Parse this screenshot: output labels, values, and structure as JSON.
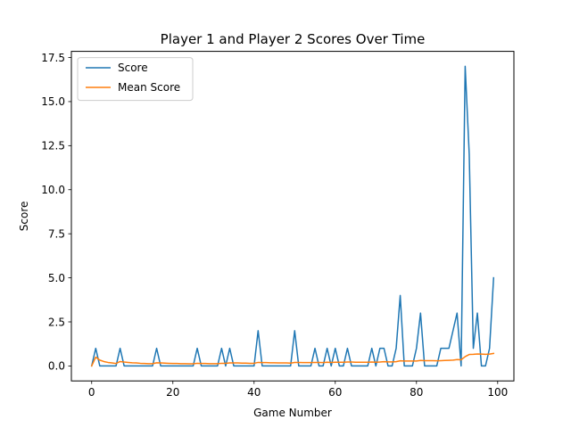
{
  "chart_data": {
    "type": "line",
    "title": "Player 1 and Player 2 Scores Over Time",
    "xlabel": "Game Number",
    "ylabel": "Score",
    "xlim": [
      -5,
      104
    ],
    "ylim": [
      -0.85,
      17.85
    ],
    "xticks": [
      0,
      20,
      40,
      60,
      80,
      100
    ],
    "xtick_labels": [
      "0",
      "20",
      "40",
      "60",
      "80",
      "100"
    ],
    "yticks": [
      0,
      2.5,
      5,
      7.5,
      10,
      12.5,
      15,
      17.5
    ],
    "ytick_labels": [
      "0.0",
      "2.5",
      "5.0",
      "7.5",
      "10.0",
      "12.5",
      "15.0",
      "17.5"
    ],
    "grid": false,
    "legend_position": "top-left",
    "series": [
      {
        "name": "Score",
        "color": "#1f77b4",
        "x": [
          0,
          1,
          2,
          3,
          4,
          5,
          6,
          7,
          8,
          9,
          10,
          11,
          12,
          13,
          14,
          15,
          16,
          17,
          18,
          19,
          20,
          21,
          22,
          23,
          24,
          25,
          26,
          27,
          28,
          29,
          30,
          31,
          32,
          33,
          34,
          35,
          36,
          37,
          38,
          39,
          40,
          41,
          42,
          43,
          44,
          45,
          46,
          47,
          48,
          49,
          50,
          51,
          52,
          53,
          54,
          55,
          56,
          57,
          58,
          59,
          60,
          61,
          62,
          63,
          64,
          65,
          66,
          67,
          68,
          69,
          70,
          71,
          72,
          73,
          74,
          75,
          76,
          77,
          78,
          79,
          80,
          81,
          82,
          83,
          84,
          85,
          86,
          87,
          88,
          89,
          90,
          91,
          92,
          93,
          94,
          95,
          96,
          97,
          98,
          99
        ],
        "values": [
          0,
          1,
          0,
          0,
          0,
          0,
          0,
          1,
          0,
          0,
          0,
          0,
          0,
          0,
          0,
          0,
          1,
          0,
          0,
          0,
          0,
          0,
          0,
          0,
          0,
          0,
          1,
          0,
          0,
          0,
          0,
          0,
          1,
          0,
          1,
          0,
          0,
          0,
          0,
          0,
          0,
          2,
          0,
          0,
          0,
          0,
          0,
          0,
          0,
          0,
          2,
          0,
          0,
          0,
          0,
          1,
          0,
          0,
          1,
          0,
          1,
          0,
          0,
          1,
          0,
          0,
          0,
          0,
          0,
          1,
          0,
          1,
          1,
          0,
          0,
          1,
          4,
          0,
          0,
          0,
          1,
          3,
          0,
          0,
          0,
          0,
          1,
          1,
          1,
          2,
          3,
          0,
          17,
          12,
          1,
          3,
          0,
          0,
          1,
          5
        ]
      },
      {
        "name": "Mean Score",
        "color": "#ff7f0e",
        "x": [
          0,
          1,
          2,
          3,
          4,
          5,
          6,
          7,
          8,
          9,
          10,
          11,
          12,
          13,
          14,
          15,
          16,
          17,
          18,
          19,
          20,
          21,
          22,
          23,
          24,
          25,
          26,
          27,
          28,
          29,
          30,
          31,
          32,
          33,
          34,
          35,
          36,
          37,
          38,
          39,
          40,
          41,
          42,
          43,
          44,
          45,
          46,
          47,
          48,
          49,
          50,
          51,
          52,
          53,
          54,
          55,
          56,
          57,
          58,
          59,
          60,
          61,
          62,
          63,
          64,
          65,
          66,
          67,
          68,
          69,
          70,
          71,
          72,
          73,
          74,
          75,
          76,
          77,
          78,
          79,
          80,
          81,
          82,
          83,
          84,
          85,
          86,
          87,
          88,
          89,
          90,
          91,
          92,
          93,
          94,
          95,
          96,
          97,
          98,
          99
        ],
        "values": [
          0,
          0.5,
          0.33,
          0.25,
          0.2,
          0.17,
          0.14,
          0.25,
          0.22,
          0.2,
          0.18,
          0.17,
          0.15,
          0.14,
          0.13,
          0.13,
          0.18,
          0.17,
          0.16,
          0.15,
          0.14,
          0.14,
          0.13,
          0.13,
          0.12,
          0.12,
          0.15,
          0.14,
          0.14,
          0.13,
          0.13,
          0.13,
          0.15,
          0.15,
          0.17,
          0.17,
          0.17,
          0.16,
          0.16,
          0.15,
          0.15,
          0.2,
          0.19,
          0.19,
          0.18,
          0.18,
          0.17,
          0.17,
          0.17,
          0.16,
          0.2,
          0.2,
          0.19,
          0.19,
          0.19,
          0.2,
          0.2,
          0.19,
          0.21,
          0.2,
          0.21,
          0.21,
          0.21,
          0.22,
          0.22,
          0.21,
          0.21,
          0.21,
          0.21,
          0.22,
          0.21,
          0.22,
          0.24,
          0.23,
          0.23,
          0.24,
          0.29,
          0.28,
          0.28,
          0.28,
          0.28,
          0.31,
          0.3,
          0.3,
          0.3,
          0.29,
          0.3,
          0.31,
          0.32,
          0.33,
          0.36,
          0.35,
          0.53,
          0.65,
          0.66,
          0.68,
          0.67,
          0.66,
          0.67,
          0.71
        ]
      }
    ]
  }
}
